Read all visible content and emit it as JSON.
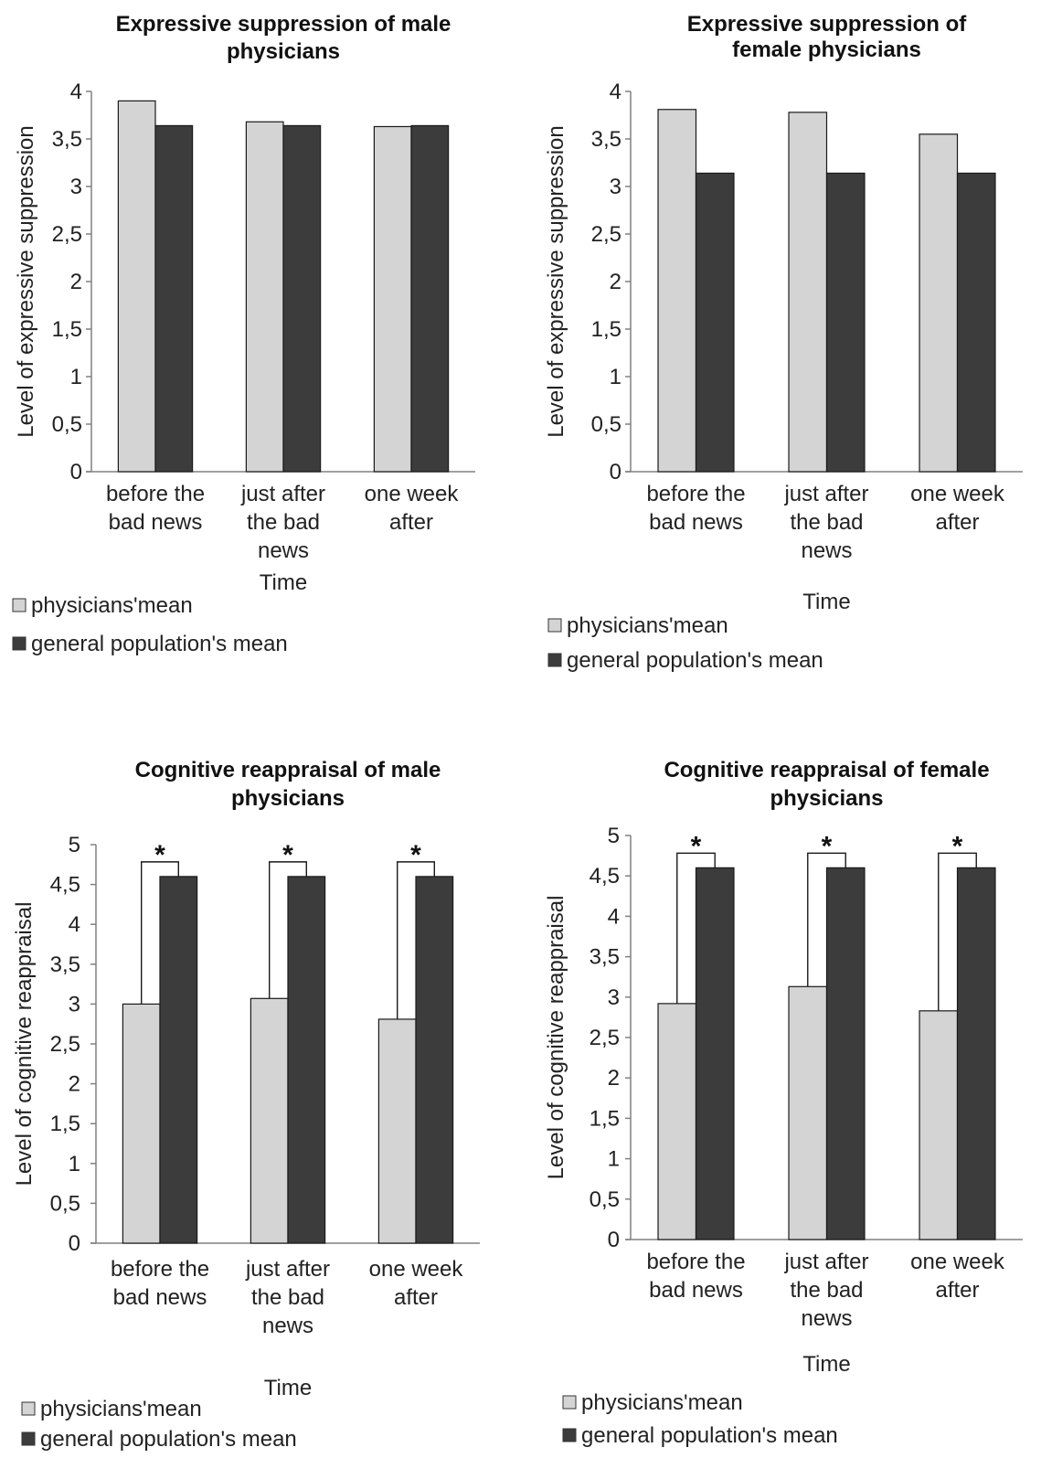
{
  "colors": {
    "physicians": "#d4d4d4",
    "general": "#3c3c3c",
    "axis": "#808080"
  },
  "chart_data": [
    {
      "type": "bar",
      "title_lines": [
        "Expressive suppression of male",
        "physicians"
      ],
      "xlabel": "Time",
      "ylabel": "Level of expressive suppression",
      "ylim": [
        0,
        4
      ],
      "yticks": [
        "0",
        "0,5",
        "1",
        "1,5",
        "2",
        "2,5",
        "3",
        "3,5",
        "4"
      ],
      "categories": [
        [
          "before the",
          "bad news"
        ],
        [
          "just after",
          "the bad",
          "news"
        ],
        [
          "one week",
          "after"
        ]
      ],
      "series": [
        {
          "name": "physicians'mean",
          "values": [
            3.9,
            3.68,
            3.63
          ]
        },
        {
          "name": "general population's mean",
          "values": [
            3.64,
            3.64,
            3.64
          ]
        }
      ],
      "significance": []
    },
    {
      "type": "bar",
      "title_lines": [
        "Expressive suppression of",
        "female physicians"
      ],
      "xlabel": "Time",
      "ylabel": "Level of expressive suppression",
      "ylim": [
        0,
        4
      ],
      "yticks": [
        "0",
        "0,5",
        "1",
        "1,5",
        "2",
        "2,5",
        "3",
        "3,5",
        "4"
      ],
      "categories": [
        [
          "before the",
          "bad news"
        ],
        [
          "just after",
          "the bad",
          "news"
        ],
        [
          "one week",
          "after"
        ]
      ],
      "series": [
        {
          "name": "physicians'mean",
          "values": [
            3.81,
            3.78,
            3.55
          ]
        },
        {
          "name": "general population's mean",
          "values": [
            3.14,
            3.14,
            3.14
          ]
        }
      ],
      "significance": []
    },
    {
      "type": "bar",
      "title_lines": [
        "Cognitive reappraisal of male",
        "physicians"
      ],
      "xlabel": "Time",
      "ylabel": "Level of cognitive reappraisal",
      "ylim": [
        0,
        5
      ],
      "yticks": [
        "0",
        "0,5",
        "1",
        "1,5",
        "2",
        "2,5",
        "3",
        "3,5",
        "4",
        "4,5",
        "5"
      ],
      "categories": [
        [
          "before the",
          "bad news"
        ],
        [
          "just after",
          "the bad",
          "news"
        ],
        [
          "one week",
          "after"
        ]
      ],
      "series": [
        {
          "name": "physicians'mean",
          "values": [
            3.0,
            3.07,
            2.81
          ]
        },
        {
          "name": "general population's mean",
          "values": [
            4.6,
            4.6,
            4.6
          ]
        }
      ],
      "significance": [
        "*",
        "*",
        "*"
      ]
    },
    {
      "type": "bar",
      "title_lines": [
        "Cognitive reappraisal of female",
        "physicians"
      ],
      "xlabel": "Time",
      "ylabel": "Level of cognitive reappraisal",
      "ylim": [
        0,
        5
      ],
      "yticks": [
        "0",
        "0,5",
        "1",
        "1,5",
        "2",
        "2,5",
        "3",
        "3,5",
        "4",
        "4,5",
        "5"
      ],
      "categories": [
        [
          "before the",
          "bad news"
        ],
        [
          "just after",
          "the bad",
          "news"
        ],
        [
          "one week",
          "after"
        ]
      ],
      "series": [
        {
          "name": "physicians'mean",
          "values": [
            2.92,
            3.13,
            2.83
          ]
        },
        {
          "name": "general population's mean",
          "values": [
            4.6,
            4.6,
            4.6
          ]
        }
      ],
      "significance": [
        "*",
        "*",
        "*"
      ]
    }
  ]
}
